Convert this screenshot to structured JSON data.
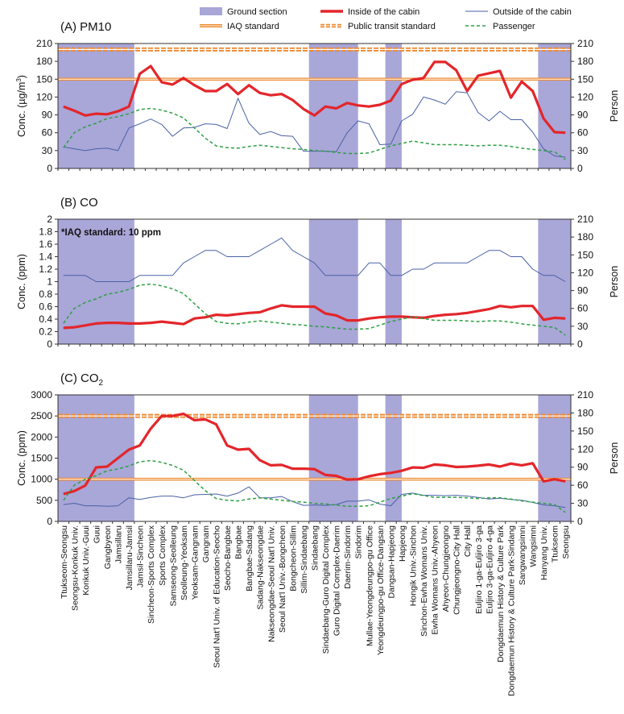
{
  "legend": {
    "items": [
      {
        "key": "ground",
        "label": "Ground section",
        "kind": "box"
      },
      {
        "key": "inside",
        "label": "Inside of the cabin",
        "kind": "thick"
      },
      {
        "key": "outside",
        "label": "Outside of the cabin",
        "kind": "thin"
      },
      {
        "key": "iaq",
        "label": "IAQ standard",
        "kind": "double"
      },
      {
        "key": "transit",
        "label": "Public transit standard",
        "kind": "dashdouble"
      },
      {
        "key": "passenger",
        "label": "Passenger",
        "kind": "dashed"
      }
    ]
  },
  "colors": {
    "ground": "#a9a6d8",
    "inside": "#e3262b",
    "outside": "#4a62a6",
    "iaq": "#ee8a30",
    "transit": "#ee8a30",
    "passenger": "#2ea043"
  },
  "stations": [
    "Ttukseom-Seongsu",
    "Seongsu-Konkuk Univ.",
    "Konkuk Univ.-Guui",
    "Guui",
    "Gangbyeon",
    "Jamsillaru",
    "Jamsillaru-Jamsil",
    "Jamsil-Sincheon",
    "Sincheon-Sports Complex",
    "Sports Complex",
    "Samseong-Seolleung",
    "Seolleung-Yeoksam",
    "Yeoksam-Gangnam",
    "Gangnam",
    "Seoul Nat'l Univ. of Education-Seocho",
    "Seocho-Bangbae",
    "Bangbae",
    "Bangbae-Sadang",
    "Sadang-Nakseongdae",
    "Nakseongdae-Seoul Nat'l Univ.",
    "Seoul Nat'l Univ.-Bongcheon",
    "Bongcheon-Sillim",
    "Sillim-Sindaebang",
    "Sindaebang",
    "Sindaebang-Guro Digital Complex",
    "Guro Digital Complex-Daerim",
    "Daerim-Sindorim",
    "Sindorim",
    "Mullae-Yeongdeungpo-gu Office",
    "Yeongdeungpo-gu Office-Dangsan",
    "Dangsan-Hapjeong",
    "Hapjeong",
    "Hongik Univ.-Sinchon",
    "Sinchon-Ewha Womans Univ.",
    "Ewha Womans Univ.-Ahyeon",
    "Ahyeon-Chungjeongno",
    "Chungjeongno-City Hall",
    "City Hall",
    "Euljiro 1-ga-Euljiro 3-ga",
    "Euljiro 3-ga-Euljiro 4-ga",
    "Dongdaemun History & Culture Park",
    "Dongdaemun History & Culture Park-Sindang",
    "Sangwangsimni",
    "Wangsimni",
    "Hanyang Univ.",
    "Ttukseom",
    "Seongsu"
  ],
  "y2label": "Person",
  "chart_data": [
    {
      "type": "line",
      "title": "(A) PM10",
      "ylabel": "Conc. (µg/m³)",
      "ylim": [
        0,
        210
      ],
      "yticks": [
        0,
        30,
        60,
        90,
        120,
        150,
        180,
        210
      ],
      "y2label": "Person",
      "y2lim": [
        0,
        210
      ],
      "y2ticks": [
        0,
        30,
        60,
        90,
        120,
        150,
        180,
        210
      ],
      "ground_sections": [
        [
          0,
          7
        ],
        [
          23,
          27.5
        ],
        [
          30,
          31.5
        ],
        [
          44,
          47
        ]
      ],
      "iaq_standard": 150,
      "transit_standard": 200,
      "series": [
        {
          "key": "inside",
          "values": [
            104,
            97,
            89,
            92,
            91,
            96,
            104,
            159,
            172,
            145,
            141,
            152,
            140,
            130,
            130,
            142,
            125,
            140,
            127,
            123,
            125,
            115,
            100,
            89,
            104,
            101,
            110,
            106,
            104,
            107,
            114,
            142,
            149,
            152,
            179,
            179,
            165,
            130,
            156,
            160,
            164,
            119,
            146,
            130,
            84,
            61,
            60
          ]
        },
        {
          "key": "outside",
          "values": [
            36,
            33,
            30,
            33,
            34,
            30,
            68,
            75,
            83,
            74,
            54,
            68,
            69,
            75,
            74,
            67,
            118,
            76,
            57,
            62,
            55,
            54,
            29,
            29,
            29,
            28,
            60,
            80,
            75,
            40,
            41,
            80,
            91,
            120,
            115,
            108,
            129,
            127,
            94,
            80,
            96,
            82,
            82,
            61,
            33,
            21,
            19
          ]
        },
        {
          "key": "passenger",
          "values": [
            35,
            60,
            70,
            76,
            84,
            87,
            92,
            99,
            101,
            98,
            93,
            85,
            68,
            51,
            38,
            35,
            34,
            37,
            39,
            37,
            35,
            33,
            32,
            30,
            29,
            27,
            25,
            25,
            26,
            32,
            38,
            42,
            46,
            43,
            40,
            40,
            40,
            39,
            38,
            39,
            39,
            37,
            34,
            32,
            30,
            28,
            15
          ]
        }
      ]
    },
    {
      "type": "line",
      "title": "(B) CO",
      "annotation": "*IAQ standard: 10 ppm",
      "ylabel": "Conc. (ppm)",
      "ylim": [
        0,
        2
      ],
      "yticks": [
        0,
        0.2,
        0.4,
        0.6,
        0.8,
        1,
        1.2,
        1.4,
        1.6,
        1.8,
        2
      ],
      "y2label": "Person",
      "y2lim": [
        0,
        210
      ],
      "y2ticks": [
        0,
        30,
        60,
        90,
        120,
        150,
        180,
        210
      ],
      "ground_sections": [
        [
          0,
          7
        ],
        [
          23,
          27.5
        ],
        [
          30,
          31.5
        ],
        [
          44,
          47
        ]
      ],
      "series": [
        {
          "key": "inside",
          "values": [
            0.26,
            0.27,
            0.3,
            0.33,
            0.34,
            0.34,
            0.33,
            0.33,
            0.34,
            0.36,
            0.34,
            0.32,
            0.41,
            0.43,
            0.47,
            0.46,
            0.48,
            0.5,
            0.51,
            0.57,
            0.62,
            0.6,
            0.6,
            0.6,
            0.49,
            0.46,
            0.38,
            0.38,
            0.41,
            0.43,
            0.44,
            0.44,
            0.43,
            0.42,
            0.45,
            0.47,
            0.48,
            0.5,
            0.53,
            0.56,
            0.61,
            0.59,
            0.61,
            0.61,
            0.39,
            0.42,
            0.41
          ]
        },
        {
          "key": "outside",
          "values": [
            1.1,
            1.1,
            1.1,
            1.0,
            1.0,
            1.0,
            1.0,
            1.1,
            1.1,
            1.1,
            1.1,
            1.3,
            1.4,
            1.5,
            1.5,
            1.4,
            1.4,
            1.4,
            1.5,
            1.6,
            1.7,
            1.5,
            1.4,
            1.3,
            1.1,
            1.1,
            1.1,
            1.1,
            1.3,
            1.3,
            1.1,
            1.1,
            1.2,
            1.2,
            1.3,
            1.3,
            1.3,
            1.3,
            1.4,
            1.5,
            1.5,
            1.4,
            1.4,
            1.2,
            1.1,
            1.1,
            1.0
          ]
        },
        {
          "key": "passenger",
          "values": [
            35,
            60,
            70,
            76,
            84,
            87,
            92,
            99,
            101,
            98,
            93,
            85,
            68,
            51,
            38,
            35,
            34,
            37,
            39,
            37,
            35,
            33,
            32,
            30,
            29,
            27,
            25,
            25,
            26,
            32,
            38,
            42,
            46,
            43,
            40,
            40,
            40,
            39,
            38,
            39,
            39,
            37,
            34,
            32,
            30,
            28,
            15
          ]
        }
      ]
    },
    {
      "type": "line",
      "title": "(C) CO2",
      "ylabel": "Conc. (ppm)",
      "ylim": [
        0,
        3000
      ],
      "yticks": [
        0,
        500,
        1000,
        1500,
        2000,
        2500,
        3000
      ],
      "y2label": "Person",
      "y2lim": [
        0,
        210
      ],
      "y2ticks": [
        0,
        30,
        60,
        90,
        120,
        150,
        180,
        210
      ],
      "ground_sections": [
        [
          0,
          7
        ],
        [
          23,
          27.5
        ],
        [
          30,
          31.5
        ],
        [
          44,
          47
        ]
      ],
      "iaq_standard": 1000,
      "transit_standard": 2500,
      "series": [
        {
          "key": "inside",
          "values": [
            650,
            720,
            850,
            1280,
            1300,
            1500,
            1700,
            1800,
            2200,
            2500,
            2500,
            2550,
            2400,
            2420,
            2300,
            1800,
            1700,
            1720,
            1450,
            1330,
            1340,
            1250,
            1250,
            1240,
            1100,
            1080,
            990,
            1000,
            1070,
            1120,
            1150,
            1200,
            1280,
            1270,
            1350,
            1330,
            1290,
            1300,
            1320,
            1350,
            1300,
            1370,
            1330,
            1380,
            950,
            1000,
            950
          ]
        },
        {
          "key": "outside",
          "values": [
            400,
            430,
            370,
            370,
            360,
            370,
            560,
            520,
            570,
            600,
            600,
            560,
            630,
            640,
            650,
            600,
            670,
            820,
            560,
            560,
            590,
            470,
            380,
            390,
            380,
            400,
            480,
            480,
            510,
            410,
            370,
            640,
            670,
            620,
            620,
            610,
            620,
            600,
            570,
            530,
            550,
            520,
            500,
            450,
            390,
            370,
            330
          ]
        },
        {
          "key": "passenger",
          "values": [
            35,
            60,
            70,
            76,
            84,
            87,
            92,
            99,
            101,
            98,
            93,
            85,
            68,
            51,
            38,
            35,
            34,
            37,
            39,
            37,
            35,
            33,
            32,
            30,
            29,
            27,
            25,
            25,
            26,
            32,
            38,
            42,
            46,
            43,
            40,
            40,
            40,
            39,
            38,
            39,
            39,
            37,
            34,
            32,
            30,
            28,
            15
          ]
        }
      ]
    }
  ]
}
